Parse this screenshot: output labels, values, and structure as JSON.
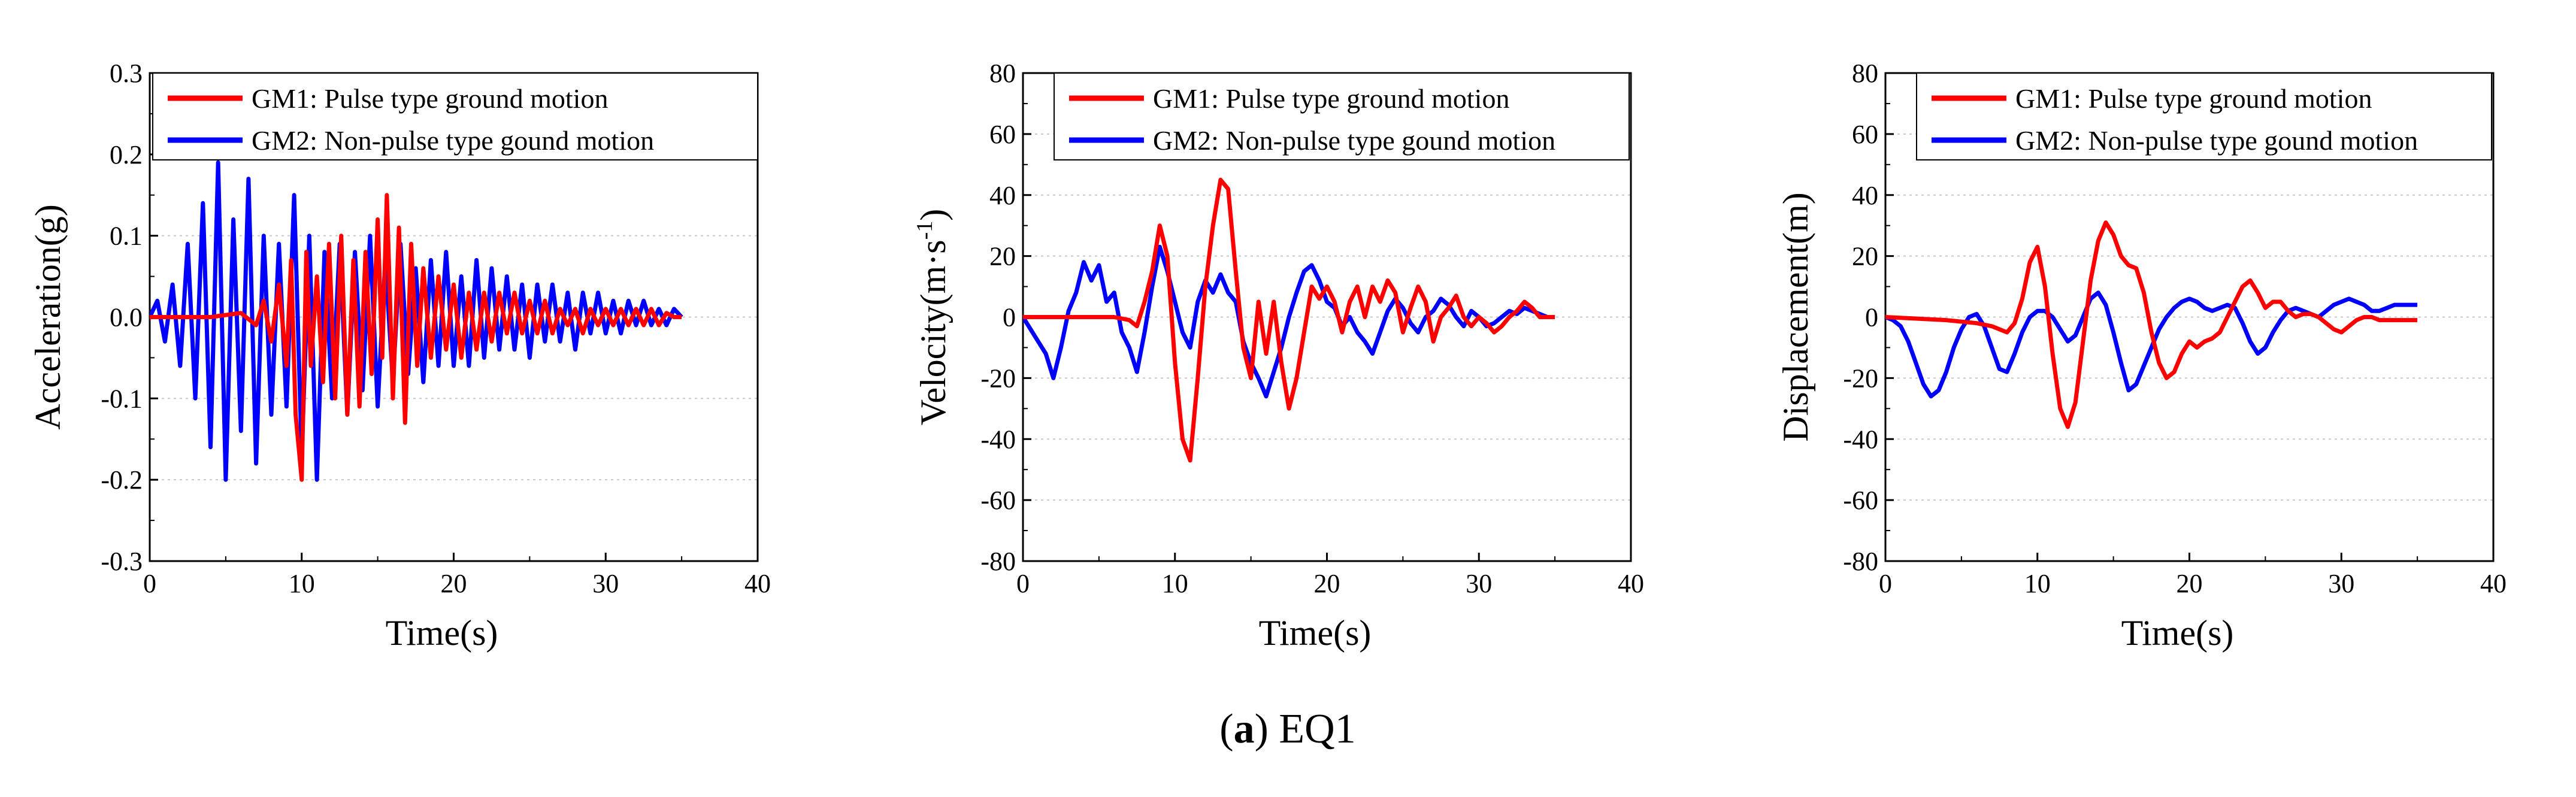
{
  "caption": {
    "open": "(",
    "letter": "a",
    "close": ")",
    "text": " EQ1"
  },
  "colors": {
    "gm1": "#ff0000",
    "gm2": "#0000ff"
  },
  "chart_data": [
    {
      "type": "line",
      "id": "acceleration",
      "xlabel": "Time(s)",
      "ylabel": "Acceleration(g)",
      "xlim": [
        0,
        40
      ],
      "ylim": [
        -0.3,
        0.3
      ],
      "xticks": [
        "0",
        "10",
        "20",
        "30",
        "40"
      ],
      "yticks": [
        "-0.3",
        "-0.2",
        "-0.1",
        "0.0",
        "0.1",
        "0.2",
        "0.3"
      ],
      "grid": "horizontal dotted",
      "legend": {
        "position": "top-left",
        "entries": [
          "GM1: Pulse type ground motion",
          "GM2: Non-pulse  type gound motion"
        ]
      },
      "series": [
        {
          "name": "GM2: Non-pulse  type gound motion",
          "color": "#0000ff",
          "x": [
            0,
            0.5,
            1,
            1.5,
            2,
            2.5,
            3,
            3.5,
            4,
            4.5,
            5,
            5.5,
            6,
            6.5,
            7,
            7.5,
            8,
            8.5,
            9,
            9.5,
            10,
            10.5,
            11,
            11.5,
            12,
            12.5,
            13,
            13.5,
            14,
            14.5,
            15,
            15.5,
            16,
            16.5,
            17,
            17.5,
            18,
            18.5,
            19,
            19.5,
            20,
            20.5,
            21,
            21.5,
            22,
            22.5,
            23,
            23.5,
            24,
            24.5,
            25,
            25.5,
            26,
            26.5,
            27,
            27.5,
            28,
            28.5,
            29,
            29.5,
            30,
            30.5,
            31,
            31.5,
            32,
            32.5,
            33,
            33.5,
            34,
            34.5,
            35
          ],
          "y": [
            0,
            0.02,
            -0.03,
            0.04,
            -0.06,
            0.09,
            -0.1,
            0.14,
            -0.16,
            0.19,
            -0.2,
            0.12,
            -0.14,
            0.17,
            -0.18,
            0.1,
            -0.12,
            0.09,
            -0.11,
            0.15,
            -0.17,
            0.1,
            -0.2,
            0.08,
            -0.1,
            0.09,
            -0.12,
            0.08,
            -0.09,
            0.1,
            -0.11,
            0.07,
            -0.08,
            0.09,
            -0.07,
            0.06,
            -0.08,
            0.07,
            -0.06,
            0.08,
            -0.06,
            0.05,
            -0.06,
            0.07,
            -0.05,
            0.06,
            -0.04,
            0.05,
            -0.04,
            0.04,
            -0.05,
            0.04,
            -0.03,
            0.04,
            -0.03,
            0.03,
            -0.04,
            0.03,
            -0.02,
            0.03,
            -0.02,
            0.02,
            -0.02,
            0.02,
            -0.01,
            0.02,
            -0.01,
            0.01,
            -0.01,
            0.01,
            0
          ]
        },
        {
          "name": "GM1: Pulse type ground motion",
          "color": "#ff0000",
          "x": [
            0,
            2,
            4,
            6,
            7,
            7.5,
            8,
            8.5,
            9,
            9.3,
            9.6,
            10,
            10.3,
            10.6,
            11,
            11.4,
            11.8,
            12.2,
            12.6,
            13,
            13.4,
            13.8,
            14.2,
            14.6,
            15,
            15.3,
            15.6,
            16,
            16.4,
            16.8,
            17.2,
            17.6,
            18,
            18.5,
            19,
            19.5,
            20,
            20.5,
            21,
            21.5,
            22,
            22.5,
            23,
            23.5,
            24,
            24.5,
            25,
            25.5,
            26,
            26.5,
            27,
            27.5,
            28,
            28.5,
            29,
            29.5,
            30,
            30.5,
            31,
            31.5,
            32,
            32.5,
            33,
            33.5,
            34,
            34.5,
            35
          ],
          "y": [
            0,
            0,
            0,
            0.005,
            -0.01,
            0.02,
            -0.03,
            0.04,
            -0.06,
            0.07,
            -0.12,
            -0.2,
            0.08,
            -0.06,
            0.05,
            -0.08,
            0.09,
            -0.1,
            0.1,
            -0.12,
            0.07,
            -0.11,
            0.08,
            -0.07,
            0.12,
            -0.05,
            0.15,
            -0.1,
            0.11,
            -0.13,
            0.09,
            -0.06,
            0.06,
            -0.05,
            0.05,
            -0.04,
            0.04,
            -0.05,
            0.03,
            -0.04,
            0.03,
            -0.03,
            0.03,
            -0.02,
            0.03,
            -0.02,
            0.02,
            -0.02,
            0.02,
            -0.02,
            0.01,
            -0.01,
            0.01,
            -0.02,
            0.01,
            -0.01,
            0.01,
            -0.01,
            0.01,
            -0.01,
            0.01,
            -0.01,
            0.01,
            -0.01,
            0.005,
            0,
            0
          ]
        }
      ]
    },
    {
      "type": "line",
      "id": "velocity",
      "xlabel": "Time(s)",
      "ylabel_main": "Velocity(m·s",
      "ylabel_sup": "-1",
      "ylabel_end": ")",
      "xlim": [
        0,
        40
      ],
      "ylim": [
        -80,
        80
      ],
      "xticks": [
        "0",
        "10",
        "20",
        "30",
        "40"
      ],
      "yticks": [
        "-80",
        "-60",
        "-40",
        "-20",
        "0",
        "20",
        "40",
        "60",
        "80"
      ],
      "grid": "horizontal dotted",
      "legend": {
        "position": "top-right",
        "entries": [
          "GM1: Pulse type ground motion",
          "GM2: Non-pulse  type gound motion"
        ]
      },
      "series": [
        {
          "name": "GM2: Non-pulse  type gound motion",
          "color": "#0000ff",
          "x": [
            0,
            0.5,
            1,
            1.5,
            2,
            2.5,
            3,
            3.5,
            4,
            4.5,
            5,
            5.5,
            6,
            6.5,
            7,
            7.5,
            8,
            8.5,
            9,
            9.5,
            10,
            10.5,
            11,
            11.5,
            12,
            12.5,
            13,
            13.5,
            14,
            14.5,
            15,
            15.5,
            16,
            16.5,
            17,
            17.5,
            18,
            18.5,
            19,
            19.5,
            20,
            20.5,
            21,
            21.5,
            22,
            22.5,
            23,
            23.5,
            24,
            24.5,
            25,
            25.5,
            26,
            26.5,
            27,
            27.5,
            28,
            28.5,
            29,
            29.5,
            30,
            30.5,
            31,
            31.5,
            32,
            32.5,
            33,
            33.5,
            34,
            34.5,
            35
          ],
          "y": [
            0,
            -4,
            -8,
            -12,
            -20,
            -10,
            2,
            8,
            18,
            12,
            17,
            5,
            8,
            -5,
            -10,
            -18,
            -5,
            10,
            23,
            15,
            5,
            -5,
            -10,
            5,
            12,
            8,
            14,
            8,
            5,
            -8,
            -15,
            -20,
            -26,
            -18,
            -10,
            0,
            8,
            15,
            17,
            12,
            5,
            3,
            -3,
            0,
            -5,
            -8,
            -12,
            -5,
            2,
            6,
            3,
            -2,
            -5,
            0,
            2,
            6,
            4,
            0,
            -3,
            2,
            0,
            -3,
            -2,
            0,
            2,
            1,
            3,
            2,
            1,
            0,
            0
          ]
        },
        {
          "name": "GM1: Pulse type ground motion",
          "color": "#ff0000",
          "x": [
            0,
            2,
            4,
            6,
            7,
            7.5,
            8,
            8.5,
            9,
            9.5,
            10,
            10.5,
            11,
            11.5,
            12,
            12.5,
            13,
            13.5,
            14,
            14.5,
            15,
            15.5,
            16,
            16.5,
            17,
            17.5,
            18,
            18.5,
            19,
            19.5,
            20,
            20.5,
            21,
            21.5,
            22,
            22.5,
            23,
            23.5,
            24,
            24.5,
            25,
            25.5,
            26,
            26.5,
            27,
            27.5,
            28,
            28.5,
            29,
            29.5,
            30,
            30.5,
            31,
            31.5,
            32,
            32.5,
            33,
            33.5,
            34,
            34.5,
            35
          ],
          "y": [
            0,
            0,
            0,
            0,
            -1,
            -3,
            5,
            15,
            30,
            20,
            -15,
            -40,
            -47,
            -20,
            10,
            30,
            45,
            42,
            15,
            -10,
            -20,
            5,
            -12,
            5,
            -15,
            -30,
            -20,
            -5,
            10,
            6,
            10,
            5,
            -5,
            5,
            10,
            0,
            10,
            5,
            12,
            8,
            -5,
            3,
            10,
            5,
            -8,
            0,
            3,
            7,
            0,
            -3,
            0,
            -2,
            -5,
            -3,
            0,
            2,
            5,
            3,
            0,
            0,
            0
          ]
        }
      ]
    },
    {
      "type": "line",
      "id": "displacement",
      "xlabel": "Time(s)",
      "ylabel": "Displacement(m)",
      "xlim": [
        0,
        40
      ],
      "ylim": [
        -80,
        80
      ],
      "xticks": [
        "0",
        "10",
        "20",
        "30",
        "40"
      ],
      "yticks": [
        "-80",
        "-60",
        "-40",
        "-20",
        "0",
        "20",
        "40",
        "60",
        "80"
      ],
      "grid": "horizontal dotted",
      "legend": {
        "position": "top-right",
        "entries": [
          "GM1: Pulse type ground motion",
          "GM2: Non-pulse  type gound motion"
        ]
      },
      "series": [
        {
          "name": "GM2: Non-pulse  type gound motion",
          "color": "#0000ff",
          "x": [
            0,
            0.5,
            1,
            1.5,
            2,
            2.5,
            3,
            3.5,
            4,
            4.5,
            5,
            5.5,
            6,
            6.5,
            7,
            7.5,
            8,
            8.5,
            9,
            9.5,
            10,
            10.5,
            11,
            11.5,
            12,
            12.5,
            13,
            13.5,
            14,
            14.5,
            15,
            15.5,
            16,
            16.5,
            17,
            17.5,
            18,
            18.5,
            19,
            19.5,
            20,
            20.5,
            21,
            21.5,
            22,
            22.5,
            23,
            23.5,
            24,
            24.5,
            25,
            25.5,
            26,
            26.5,
            27,
            27.5,
            28,
            28.5,
            29,
            29.5,
            30,
            30.5,
            31,
            31.5,
            32,
            32.5,
            33,
            33.5,
            34,
            34.5,
            35
          ],
          "y": [
            0,
            -1,
            -3,
            -8,
            -15,
            -22,
            -26,
            -24,
            -18,
            -10,
            -4,
            0,
            1,
            -3,
            -10,
            -17,
            -18,
            -12,
            -5,
            0,
            2,
            2,
            0,
            -4,
            -8,
            -6,
            0,
            6,
            8,
            4,
            -5,
            -15,
            -24,
            -22,
            -16,
            -10,
            -4,
            0,
            3,
            5,
            6,
            5,
            3,
            2,
            3,
            4,
            3,
            -2,
            -8,
            -12,
            -10,
            -5,
            -1,
            2,
            3,
            2,
            1,
            0,
            2,
            4,
            5,
            6,
            5,
            4,
            2,
            2,
            3,
            4,
            4,
            4,
            4
          ]
        },
        {
          "name": "GM1: Pulse type ground motion",
          "color": "#ff0000",
          "x": [
            0,
            2,
            4,
            6,
            7,
            8,
            8.5,
            9,
            9.5,
            10,
            10.5,
            11,
            11.5,
            12,
            12.5,
            13,
            13.5,
            14,
            14.5,
            15,
            15.5,
            16,
            16.5,
            17,
            17.5,
            18,
            18.5,
            19,
            19.5,
            20,
            20.5,
            21,
            21.5,
            22,
            22.5,
            23,
            23.5,
            24,
            24.5,
            25,
            25.5,
            26,
            26.5,
            27,
            27.5,
            28,
            28.5,
            29,
            29.5,
            30,
            30.5,
            31,
            31.5,
            32,
            32.5,
            33,
            33.5,
            34,
            34.5,
            35
          ],
          "y": [
            0,
            -0.5,
            -1,
            -2,
            -3,
            -5,
            -2,
            6,
            18,
            23,
            10,
            -12,
            -30,
            -36,
            -28,
            -8,
            12,
            25,
            31,
            27,
            20,
            17,
            16,
            8,
            -5,
            -15,
            -20,
            -18,
            -12,
            -8,
            -10,
            -8,
            -7,
            -5,
            0,
            5,
            10,
            12,
            8,
            3,
            5,
            5,
            2,
            0,
            1,
            1,
            0,
            -2,
            -4,
            -5,
            -3,
            -1,
            0,
            0,
            -1,
            -1,
            -1,
            -1,
            -1,
            -1
          ]
        }
      ]
    }
  ]
}
